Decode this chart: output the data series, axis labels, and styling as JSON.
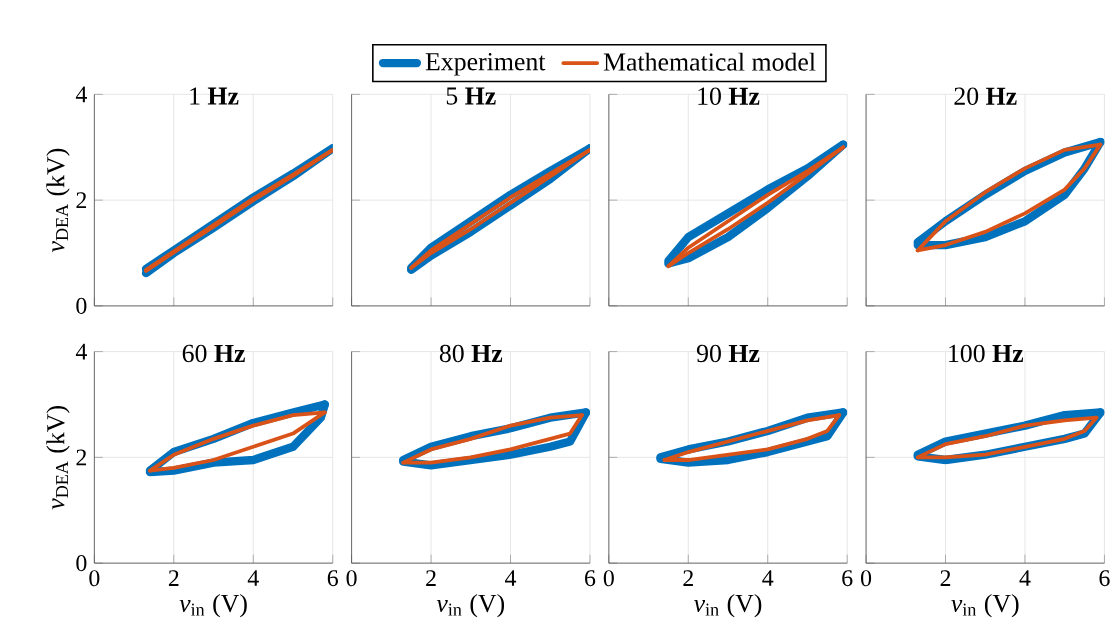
{
  "chart_data": [
    {
      "type": "line",
      "title": "1 **Hz**",
      "ylabel": "*v*$_{DEA}$ (kV)",
      "xlim": [
        0,
        6
      ],
      "ylim": [
        0,
        4
      ],
      "xticks": [
        0,
        2,
        4,
        6
      ],
      "yticks": [
        0,
        2,
        4
      ],
      "grid": true,
      "tick_labels": "y",
      "legend": "top",
      "series": [
        {
          "name": "Experiment",
          "color": "#0072bd",
          "x": [
            1.3,
            2,
            3,
            4,
            5,
            6
          ],
          "values": [
            0.7,
            1.05,
            1.55,
            2.05,
            2.5,
            2.98
          ]
        },
        {
          "color": "#0072bd",
          "x": [
            1.3,
            2,
            3,
            4,
            5,
            6
          ],
          "values": [
            0.62,
            1.0,
            1.48,
            1.98,
            2.45,
            2.98
          ]
        },
        {
          "name": "Mathematical model",
          "color": "#d95319",
          "x": [
            1.3,
            2,
            3,
            4,
            5,
            6
          ],
          "values": [
            0.68,
            1.03,
            1.53,
            2.03,
            2.48,
            2.95
          ]
        },
        {
          "color": "#d95319",
          "x": [
            1.3,
            2,
            3,
            4,
            5,
            6
          ],
          "values": [
            0.66,
            1.01,
            1.5,
            2.0,
            2.46,
            2.95
          ]
        }
      ]
    },
    {
      "type": "line",
      "title": "5 **Hz**",
      "xlim": [
        0,
        6
      ],
      "ylim": [
        0,
        4
      ],
      "xticks": [
        0,
        2,
        4,
        6
      ],
      "yticks": [
        0,
        2,
        4
      ],
      "grid": true,
      "tick_labels": false,
      "series": [
        {
          "color": "#0072bd",
          "x": [
            1.5,
            2,
            3,
            4,
            5,
            6
          ],
          "values": [
            0.72,
            1.1,
            1.6,
            2.1,
            2.55,
            2.98
          ]
        },
        {
          "color": "#0072bd",
          "x": [
            1.5,
            2,
            3,
            4,
            5,
            6
          ],
          "values": [
            0.68,
            0.95,
            1.4,
            1.9,
            2.4,
            2.98
          ]
        },
        {
          "color": "#d95319",
          "x": [
            1.5,
            2,
            3,
            4,
            5,
            6
          ],
          "values": [
            0.72,
            1.05,
            1.55,
            2.05,
            2.5,
            2.95
          ]
        },
        {
          "color": "#d95319",
          "x": [
            1.5,
            2,
            3,
            4,
            5,
            6
          ],
          "values": [
            0.72,
            1.0,
            1.45,
            1.95,
            2.45,
            2.95
          ]
        }
      ]
    },
    {
      "type": "line",
      "title": "10 **Hz**",
      "xlim": [
        0,
        6
      ],
      "ylim": [
        0,
        4
      ],
      "xticks": [
        0,
        2,
        4,
        6
      ],
      "yticks": [
        0,
        2,
        4
      ],
      "grid": true,
      "tick_labels": false,
      "series": [
        {
          "color": "#0072bd",
          "x": [
            1.5,
            2,
            3,
            4,
            5,
            5.9
          ],
          "values": [
            0.85,
            1.3,
            1.75,
            2.2,
            2.6,
            3.05
          ]
        },
        {
          "color": "#0072bd",
          "x": [
            1.5,
            2,
            3,
            4,
            5,
            5.9
          ],
          "values": [
            0.8,
            0.9,
            1.3,
            1.85,
            2.45,
            3.05
          ]
        },
        {
          "color": "#d95319",
          "x": [
            1.5,
            2,
            3,
            4,
            5,
            5.9
          ],
          "values": [
            0.75,
            1.1,
            1.6,
            2.1,
            2.55,
            3.0
          ]
        },
        {
          "color": "#d95319",
          "x": [
            1.5,
            2,
            3,
            4,
            5,
            5.9
          ],
          "values": [
            0.75,
            1.0,
            1.45,
            1.95,
            2.5,
            3.0
          ]
        }
      ]
    },
    {
      "type": "line",
      "title": "20 **Hz**",
      "xlim": [
        0,
        6
      ],
      "ylim": [
        0,
        4
      ],
      "xticks": [
        0,
        2,
        4,
        6
      ],
      "yticks": [
        0,
        2,
        4
      ],
      "grid": true,
      "tick_labels": false,
      "series": [
        {
          "color": "#0072bd",
          "x": [
            1.3,
            2,
            3,
            4,
            5,
            5.9
          ],
          "values": [
            1.2,
            1.6,
            2.1,
            2.55,
            2.9,
            3.1
          ]
        },
        {
          "color": "#0072bd",
          "x": [
            1.3,
            2,
            3,
            4,
            5,
            5.5,
            5.9
          ],
          "values": [
            1.15,
            1.15,
            1.3,
            1.6,
            2.1,
            2.6,
            3.1
          ]
        },
        {
          "color": "#d95319",
          "x": [
            1.3,
            2,
            3,
            4,
            5,
            5.9
          ],
          "values": [
            1.05,
            1.6,
            2.15,
            2.6,
            2.95,
            3.05
          ]
        },
        {
          "color": "#d95319",
          "x": [
            1.3,
            2,
            3,
            4,
            5,
            5.5,
            5.9
          ],
          "values": [
            1.05,
            1.15,
            1.4,
            1.75,
            2.2,
            2.6,
            3.05
          ]
        }
      ]
    },
    {
      "type": "line",
      "title": "60 **Hz**",
      "xlabel": "*v*$_{in}$ (V)",
      "ylabel": "*v*$_{DEA}$ (kV)",
      "xlim": [
        0,
        6
      ],
      "ylim": [
        0,
        4
      ],
      "xticks": [
        0,
        2,
        4,
        6
      ],
      "yticks": [
        0,
        2,
        4
      ],
      "grid": true,
      "series": [
        {
          "color": "#0072bd",
          "x": [
            1.4,
            2,
            3,
            4,
            5,
            5.8
          ],
          "values": [
            1.75,
            2.1,
            2.35,
            2.65,
            2.85,
            3.0
          ]
        },
        {
          "color": "#0072bd",
          "x": [
            1.4,
            2,
            3,
            4,
            5,
            5.7,
            5.8
          ],
          "values": [
            1.72,
            1.75,
            1.9,
            1.95,
            2.2,
            2.75,
            3.0
          ]
        },
        {
          "color": "#d95319",
          "x": [
            1.4,
            2,
            3,
            4,
            5,
            5.8
          ],
          "values": [
            1.75,
            2.05,
            2.35,
            2.6,
            2.8,
            2.85
          ]
        },
        {
          "color": "#d95319",
          "x": [
            1.4,
            2,
            3,
            4,
            5,
            5.8
          ],
          "values": [
            1.75,
            1.8,
            1.95,
            2.2,
            2.45,
            2.85
          ]
        }
      ]
    },
    {
      "type": "line",
      "title": "80 **Hz**",
      "xlabel": "*v*$_{in}$ (V)",
      "xlim": [
        0,
        6
      ],
      "ylim": [
        0,
        4
      ],
      "xticks": [
        0,
        2,
        4,
        6
      ],
      "yticks": [
        0,
        2,
        4
      ],
      "grid": true,
      "tick_labels": "x",
      "series": [
        {
          "color": "#0072bd",
          "x": [
            1.3,
            2,
            3,
            4,
            5,
            5.9
          ],
          "values": [
            1.95,
            2.2,
            2.4,
            2.55,
            2.75,
            2.85
          ]
        },
        {
          "color": "#0072bd",
          "x": [
            1.3,
            2,
            3,
            4,
            5,
            5.5,
            5.9
          ],
          "values": [
            1.92,
            1.85,
            1.95,
            2.05,
            2.2,
            2.3,
            2.85
          ]
        },
        {
          "color": "#d95319",
          "x": [
            1.3,
            2,
            3,
            4,
            5,
            5.8
          ],
          "values": [
            1.9,
            2.15,
            2.35,
            2.6,
            2.75,
            2.8
          ]
        },
        {
          "color": "#d95319",
          "x": [
            1.3,
            2,
            3,
            4,
            5,
            5.5,
            5.8
          ],
          "values": [
            1.9,
            1.9,
            2.0,
            2.15,
            2.35,
            2.45,
            2.8
          ]
        }
      ]
    },
    {
      "type": "line",
      "title": "90 **Hz**",
      "xlabel": "*v*$_{in}$ (V)",
      "xlim": [
        0,
        6
      ],
      "ylim": [
        0,
        4
      ],
      "xticks": [
        0,
        2,
        4,
        6
      ],
      "yticks": [
        0,
        2,
        4
      ],
      "grid": true,
      "tick_labels": "x",
      "series": [
        {
          "color": "#0072bd",
          "x": [
            1.3,
            2,
            3,
            4,
            5,
            5.9
          ],
          "values": [
            2.0,
            2.15,
            2.3,
            2.5,
            2.75,
            2.85
          ]
        },
        {
          "color": "#0072bd",
          "x": [
            1.3,
            2,
            3,
            4,
            5,
            5.5,
            5.9
          ],
          "values": [
            1.97,
            1.9,
            1.95,
            2.1,
            2.3,
            2.4,
            2.85
          ]
        },
        {
          "color": "#d95319",
          "x": [
            1.4,
            2,
            3,
            4,
            5,
            5.8
          ],
          "values": [
            1.95,
            2.1,
            2.3,
            2.5,
            2.7,
            2.8
          ]
        },
        {
          "color": "#d95319",
          "x": [
            1.4,
            2,
            3,
            4,
            5,
            5.5,
            5.8
          ],
          "values": [
            1.95,
            1.95,
            2.05,
            2.15,
            2.35,
            2.5,
            2.8
          ]
        }
      ]
    },
    {
      "type": "line",
      "title": "100 **Hz**",
      "xlabel": "*v*$_{in}$ (V)",
      "xlim": [
        0,
        6
      ],
      "ylim": [
        0,
        4
      ],
      "xticks": [
        0,
        2,
        4,
        6
      ],
      "yticks": [
        0,
        2,
        4
      ],
      "grid": true,
      "tick_labels": "x",
      "series": [
        {
          "color": "#0072bd",
          "x": [
            1.3,
            2,
            3,
            4,
            5,
            5.9
          ],
          "values": [
            2.05,
            2.3,
            2.45,
            2.6,
            2.8,
            2.85
          ]
        },
        {
          "color": "#0072bd",
          "x": [
            1.3,
            2,
            3,
            4,
            5,
            5.5,
            5.9
          ],
          "values": [
            2.02,
            1.95,
            2.05,
            2.2,
            2.35,
            2.45,
            2.85
          ]
        },
        {
          "color": "#d95319",
          "x": [
            1.3,
            2,
            3,
            4,
            5,
            5.8
          ],
          "values": [
            2.0,
            2.25,
            2.4,
            2.6,
            2.7,
            2.75
          ]
        },
        {
          "color": "#d95319",
          "x": [
            1.3,
            2,
            3,
            4,
            5,
            5.5,
            5.8
          ],
          "values": [
            2.0,
            2.0,
            2.05,
            2.2,
            2.35,
            2.5,
            2.75
          ]
        }
      ]
    }
  ]
}
